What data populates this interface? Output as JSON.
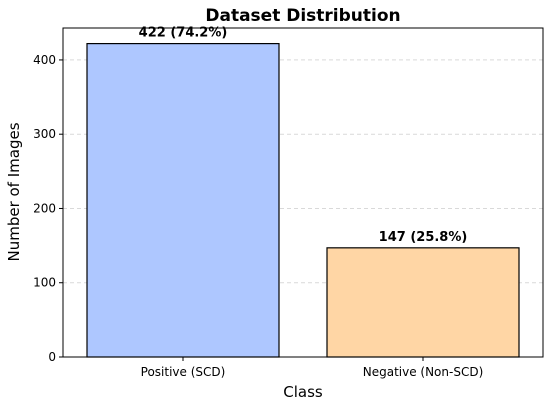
{
  "chart_data": {
    "type": "bar",
    "title": "Dataset Distribution",
    "xlabel": "Class",
    "ylabel": "Number of Images",
    "categories": [
      "Positive (SCD)",
      "Negative (Non-SCD)"
    ],
    "values": [
      422,
      147
    ],
    "data_labels": [
      "422 (74.2%)",
      "147 (25.8%)"
    ],
    "bar_colors": [
      "#aec7ff",
      "#ffd6a5"
    ],
    "edge_color": "#000000",
    "ylim": [
      0,
      443
    ],
    "yticks": [
      0,
      100,
      200,
      300,
      400
    ],
    "ytick_labels": [
      "0",
      "100",
      "200",
      "300",
      "400"
    ],
    "grid": {
      "axis": "y",
      "style": "dashed",
      "color": "#d9d9d9"
    },
    "legend": "none"
  }
}
